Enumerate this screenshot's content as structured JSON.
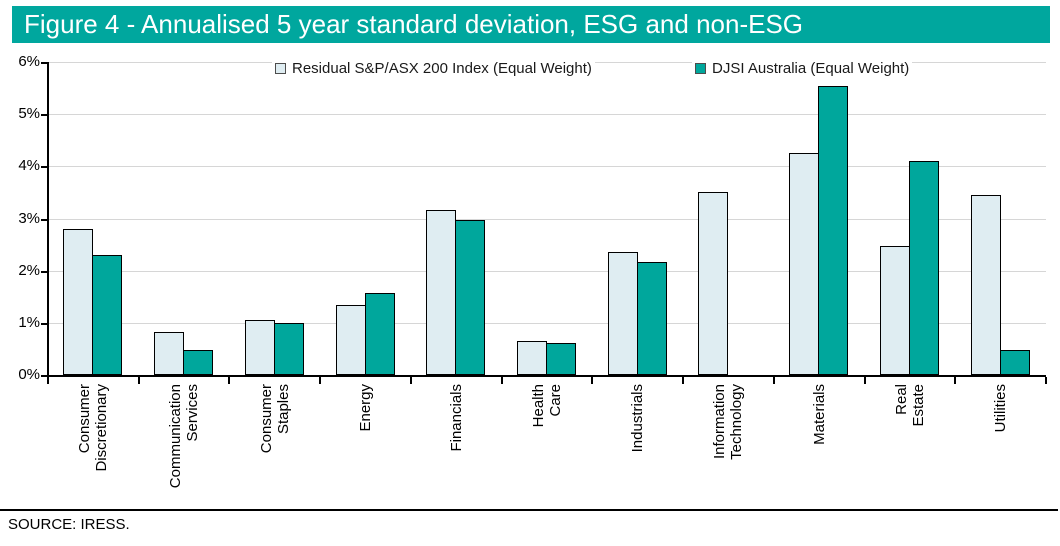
{
  "header": {
    "title": "Figure 4 - Annualised 5 year standard deviation, ESG and non-ESG"
  },
  "footer": {
    "source": "SOURCE: IRESS."
  },
  "colors": {
    "header_bg": "#00A79E",
    "header_text": "#FFFFFF",
    "residual_fill": "#DFEDF2",
    "djsi_fill": "#00A79C",
    "bar_border": "#000000",
    "gridline": "#D6D6D6",
    "axis": "#000000"
  },
  "chart_data": {
    "type": "bar",
    "title": "Annualised 5 year standard deviation, ESG and non-ESG",
    "categories": [
      "Consumer Discretionary",
      "Communication Services",
      "Consumer Staples",
      "Energy",
      "Financials",
      "Health Care",
      "Industrials",
      "Information Technology",
      "Materials",
      "Real Estate",
      "Utilities"
    ],
    "category_lines": [
      [
        "Consumer",
        "Discretionary"
      ],
      [
        "Communication",
        "Services"
      ],
      [
        "Consumer",
        "Staples"
      ],
      [
        "Energy"
      ],
      [
        "Financials"
      ],
      [
        "Health",
        "Care"
      ],
      [
        "Industrials"
      ],
      [
        "Information",
        "Technology"
      ],
      [
        "Materials"
      ],
      [
        "Real",
        "Estate"
      ],
      [
        "Utilities"
      ]
    ],
    "series": [
      {
        "name": "Residual S&P/ASX 200 Index (Equal Weight)",
        "values": [
          2.8,
          0.83,
          1.05,
          1.35,
          3.17,
          0.65,
          2.36,
          3.5,
          4.26,
          2.47,
          3.46
        ]
      },
      {
        "name": "DJSI Australia (Equal Weight)",
        "values": [
          2.3,
          0.48,
          1.0,
          1.58,
          2.97,
          0.62,
          2.17,
          0,
          5.54,
          4.1,
          0.48
        ]
      }
    ],
    "xlabel": "",
    "ylabel": "",
    "ylim": [
      0,
      6
    ],
    "ytick_values": [
      0,
      1,
      2,
      3,
      4,
      5,
      6
    ],
    "ytick_labels": [
      "0%",
      "1%",
      "2%",
      "3%",
      "4%",
      "5%",
      "6%"
    ],
    "grid": true,
    "legend_position": "top-center"
  }
}
